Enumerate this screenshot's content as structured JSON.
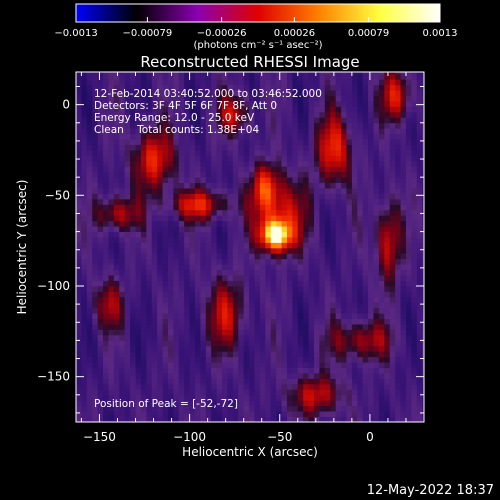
{
  "chart_data": {
    "type": "heatmap",
    "title": "Reconstructed RHESSI Image",
    "xlabel": "Heliocentric X (arcsec)",
    "ylabel": "Heliocentric Y (arcsec)",
    "xlim": [
      -163,
      30
    ],
    "ylim": [
      -175,
      18
    ],
    "x_ticks": [
      -150,
      -100,
      -50,
      0
    ],
    "y_ticks": [
      0,
      -50,
      -100,
      -150
    ],
    "x_tick_labels": [
      "−150",
      "−100",
      "−50",
      "0"
    ],
    "y_tick_labels": [
      "0",
      "−50",
      "−100",
      "−150"
    ],
    "peak_position": [
      -52,
      -72
    ],
    "colorbar": {
      "range": [
        -0.0013,
        0.0013
      ],
      "ticks": [
        -0.0013,
        -0.00079,
        -0.00026,
        0.00026,
        0.00079,
        0.0013
      ],
      "tick_labels": [
        "−0.0013",
        "−0.00079",
        "−0.00026",
        "0.00026",
        "0.00079",
        "0.0013"
      ],
      "unit_label": "(photons cm⁻² s⁻¹ asec⁻²)",
      "colors": [
        "#0000ff",
        "#000000",
        "#8a00b0",
        "#e00000",
        "#ff8000",
        "#ffff40",
        "#ffffff"
      ]
    },
    "annotations": {
      "time_range": "12-Feb-2014 03:40:52.000 to 03:46:52.000",
      "detectors": "Detectors: 3F 4F 5F 6F 7F 8F, Att 0",
      "energy_range": "Energy Range: 12.0 - 25.0 keV",
      "clean": "Clean    Total counts: 1.38E+04",
      "peak_label": "Position of Peak = [-52,-72]"
    },
    "sources": [
      {
        "x": -52,
        "y": -72,
        "amplitude": 1.0,
        "sx": 6,
        "sy": 6
      },
      {
        "x": -50,
        "y": -60,
        "amplitude": 0.55,
        "sx": 10,
        "sy": 14
      },
      {
        "x": -58,
        "y": -45,
        "amplitude": 0.55,
        "sx": 5,
        "sy": 9
      },
      {
        "x": -120,
        "y": -30,
        "amplitude": 0.6,
        "sx": 8,
        "sy": 12
      },
      {
        "x": -95,
        "y": -55,
        "amplitude": 0.55,
        "sx": 12,
        "sy": 6
      },
      {
        "x": -140,
        "y": -60,
        "amplitude": 0.5,
        "sx": 8,
        "sy": 7
      },
      {
        "x": -20,
        "y": -25,
        "amplitude": 0.6,
        "sx": 7,
        "sy": 14
      },
      {
        "x": 10,
        "y": -75,
        "amplitude": 0.55,
        "sx": 5,
        "sy": 16
      },
      {
        "x": 15,
        "y": 5,
        "amplitude": 0.55,
        "sx": 6,
        "sy": 10
      },
      {
        "x": -75,
        "y": -5,
        "amplitude": 0.5,
        "sx": 6,
        "sy": 8
      },
      {
        "x": -30,
        "y": -160,
        "amplitude": 0.5,
        "sx": 10,
        "sy": 8
      },
      {
        "x": -80,
        "y": -115,
        "amplitude": 0.45,
        "sx": 8,
        "sy": 14
      },
      {
        "x": -5,
        "y": -130,
        "amplitude": 0.45,
        "sx": 12,
        "sy": 8
      },
      {
        "x": -145,
        "y": -110,
        "amplitude": 0.4,
        "sx": 6,
        "sy": 10
      }
    ]
  },
  "footer": {
    "timestamp": "12-May-2022 18:37"
  }
}
